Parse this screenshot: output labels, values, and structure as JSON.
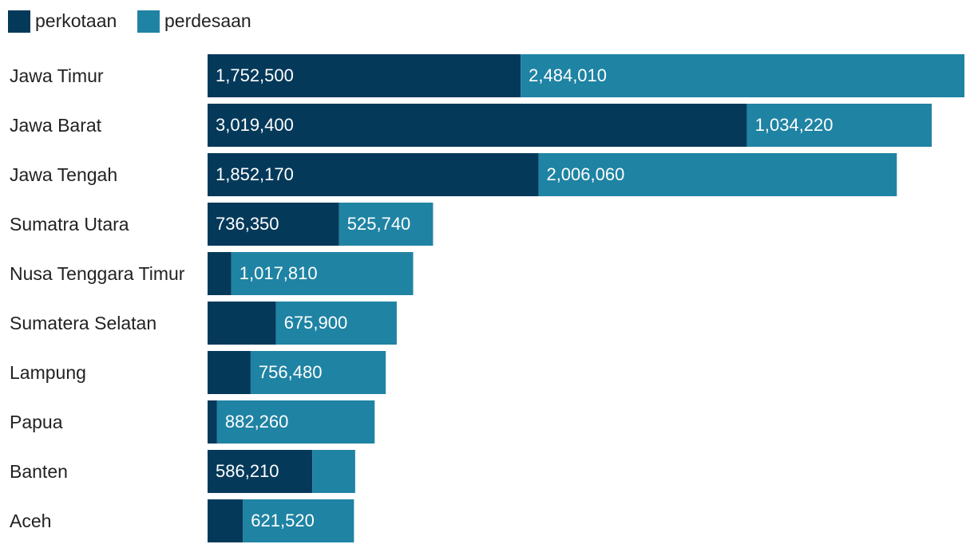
{
  "chart_data": {
    "type": "bar",
    "orientation": "horizontal",
    "stacked": true,
    "title": "",
    "xlabel": "",
    "ylabel": "",
    "grid": false,
    "legend_position": "top-left",
    "categories": [
      "Jawa Timur",
      "Jawa Barat",
      "Jawa Tengah",
      "Sumatra Utara",
      "Nusa Tenggara Timur",
      "Sumatera Selatan",
      "Lampung",
      "Papua",
      "Banten",
      "Aceh"
    ],
    "series": [
      {
        "name": "perkotaan",
        "color": "#04395a",
        "values": [
          1752500,
          3019400,
          1852170,
          736350,
          133000,
          383000,
          241000,
          53000,
          586210,
          198000
        ],
        "labels": [
          "1,752,500",
          "3,019,400",
          "1,852,170",
          "736,350",
          "",
          "",
          "",
          "",
          "586,210",
          ""
        ]
      },
      {
        "name": "perdesaan",
        "color": "#1f83a3",
        "values": [
          2484010,
          1034220,
          2006060,
          525740,
          1017810,
          675900,
          756480,
          882260,
          240000,
          621520
        ],
        "labels": [
          "2,484,010",
          "1,034,220",
          "2,006,060",
          "525,740",
          "1,017,810",
          "675,900",
          "756,480",
          "882,260",
          "",
          "621,520"
        ]
      }
    ],
    "xlim": [
      0,
      4236510
    ]
  }
}
